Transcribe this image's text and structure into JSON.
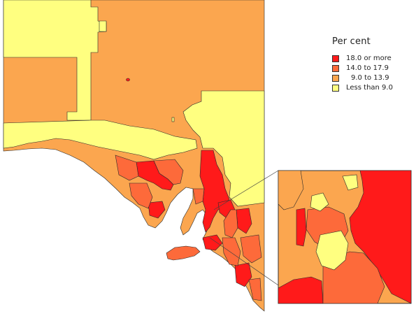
{
  "legend": {
    "title": "Per cent",
    "items": [
      {
        "label": "18.0 or more",
        "color": "#ff1a1a"
      },
      {
        "label": "14.0 to 17.9",
        "color": "#fd6a3a"
      },
      {
        "label": "9.0 to 13.9",
        "color": "#fba64f"
      },
      {
        "label": "Less than 9.0",
        "color": "#ffff80"
      }
    ]
  },
  "colors": {
    "background": "#ffffff",
    "border": "#222222"
  }
}
